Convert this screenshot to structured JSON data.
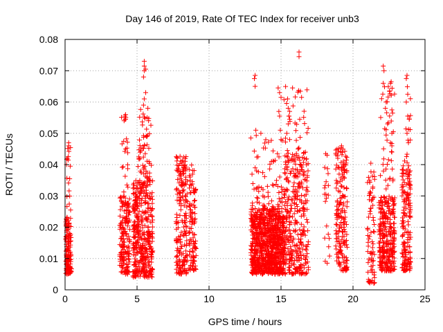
{
  "chart_data": {
    "type": "scatter",
    "title": "Day 146 of 2019, Rate Of TEC Index for receiver unb3",
    "xlabel": "GPS time / hours",
    "ylabel": "ROTI / TECUs",
    "xlim": [
      0,
      25
    ],
    "ylim": [
      0,
      0.08
    ],
    "xticks": [
      0,
      5,
      10,
      15,
      20,
      25
    ],
    "xtick_labels": [
      "0",
      "5",
      "10",
      "15",
      "20",
      "25"
    ],
    "yticks": [
      0,
      0.01,
      0.02,
      0.03,
      0.04,
      0.05,
      0.06,
      0.07,
      0.08
    ],
    "ytick_labels": [
      "0",
      "0.01",
      "0.02",
      "0.03",
      "0.04",
      "0.05",
      "0.06",
      "0.07",
      "0.08"
    ],
    "grid": true,
    "legend": "none",
    "marker": "plus",
    "color": "#ff0000",
    "clusters": [
      {
        "x": [
          0.05,
          0.45
        ],
        "y": [
          0.005,
          0.024
        ],
        "n": 140
      },
      {
        "x": [
          0.1,
          0.4
        ],
        "y": [
          0.024,
          0.047
        ],
        "n": 16
      },
      {
        "x": [
          3.8,
          4.5
        ],
        "y": [
          0.005,
          0.03
        ],
        "n": 170
      },
      {
        "x": [
          3.9,
          4.4
        ],
        "y": [
          0.03,
          0.056
        ],
        "n": 18
      },
      {
        "x": [
          4.7,
          6.1
        ],
        "y": [
          0.004,
          0.035
        ],
        "n": 420
      },
      {
        "x": [
          5.0,
          6.0
        ],
        "y": [
          0.035,
          0.058
        ],
        "n": 55
      },
      {
        "x": [
          7.7,
          8.5
        ],
        "y": [
          0.005,
          0.043
        ],
        "n": 200
      },
      {
        "x": [
          8.6,
          9.1
        ],
        "y": [
          0.006,
          0.04
        ],
        "n": 110
      },
      {
        "x": [
          12.9,
          15.2
        ],
        "y": [
          0.005,
          0.026
        ],
        "n": 900
      },
      {
        "x": [
          12.9,
          15.2
        ],
        "y": [
          0.026,
          0.05
        ],
        "n": 70
      },
      {
        "x": [
          15.2,
          16.9
        ],
        "y": [
          0.005,
          0.044
        ],
        "n": 350
      },
      {
        "x": [
          15.2,
          16.9
        ],
        "y": [
          0.044,
          0.065
        ],
        "n": 30
      },
      {
        "x": [
          18.0,
          18.4
        ],
        "y": [
          0.008,
          0.043
        ],
        "n": 20
      },
      {
        "x": [
          18.8,
          19.6
        ],
        "y": [
          0.006,
          0.046
        ],
        "n": 190
      },
      {
        "x": [
          21.0,
          21.5
        ],
        "y": [
          0.002,
          0.041
        ],
        "n": 80
      },
      {
        "x": [
          21.8,
          22.9
        ],
        "y": [
          0.006,
          0.03
        ],
        "n": 300
      },
      {
        "x": [
          21.9,
          22.9
        ],
        "y": [
          0.03,
          0.066
        ],
        "n": 40
      },
      {
        "x": [
          23.4,
          24.0
        ],
        "y": [
          0.006,
          0.04
        ],
        "n": 170
      },
      {
        "x": [
          23.5,
          24.0
        ],
        "y": [
          0.04,
          0.068
        ],
        "n": 14
      }
    ],
    "points": [
      [
        5.5,
        0.073
      ],
      [
        5.5,
        0.0715
      ],
      [
        5.5,
        0.07
      ],
      [
        5.6,
        0.0705
      ],
      [
        5.45,
        0.068
      ],
      [
        5.6,
        0.063
      ],
      [
        5.5,
        0.061
      ],
      [
        5.45,
        0.059
      ],
      [
        5.75,
        0.058
      ],
      [
        5.7,
        0.055
      ],
      [
        5.8,
        0.054
      ],
      [
        4.2,
        0.056
      ],
      [
        4.15,
        0.0555
      ],
      [
        4.2,
        0.0545
      ],
      [
        4.1,
        0.054
      ],
      [
        4.2,
        0.045
      ],
      [
        0.15,
        0.042
      ],
      [
        0.25,
        0.047
      ],
      [
        0.25,
        0.046
      ],
      [
        0.1,
        0.04
      ],
      [
        13.2,
        0.0685
      ],
      [
        13.15,
        0.0675
      ],
      [
        13.2,
        0.065
      ],
      [
        13.25,
        0.051
      ],
      [
        13.6,
        0.05
      ],
      [
        14.8,
        0.0645
      ],
      [
        14.9,
        0.063
      ],
      [
        15.0,
        0.0615
      ],
      [
        14.85,
        0.057
      ],
      [
        14.9,
        0.0555
      ],
      [
        14.95,
        0.051
      ],
      [
        15.0,
        0.048
      ],
      [
        16.25,
        0.076
      ],
      [
        16.25,
        0.0745
      ],
      [
        15.8,
        0.0645
      ],
      [
        15.5,
        0.058
      ],
      [
        15.6,
        0.057
      ],
      [
        15.55,
        0.0555
      ],
      [
        15.5,
        0.053
      ],
      [
        16.3,
        0.0545
      ],
      [
        15.4,
        0.05
      ],
      [
        15.6,
        0.048
      ],
      [
        22.1,
        0.0715
      ],
      [
        22.15,
        0.07
      ],
      [
        22.1,
        0.066
      ],
      [
        22.6,
        0.066
      ],
      [
        22.65,
        0.0665
      ],
      [
        22.3,
        0.06
      ],
      [
        22.25,
        0.058
      ],
      [
        22.7,
        0.0575
      ],
      [
        22.75,
        0.0565
      ],
      [
        22.4,
        0.053
      ],
      [
        22.2,
        0.0515
      ],
      [
        22.7,
        0.05
      ],
      [
        22.8,
        0.0505
      ],
      [
        22.6,
        0.047
      ],
      [
        22.7,
        0.046
      ],
      [
        23.75,
        0.0685
      ],
      [
        23.7,
        0.0675
      ],
      [
        23.8,
        0.0625
      ],
      [
        23.7,
        0.06
      ],
      [
        23.8,
        0.0555
      ],
      [
        23.75,
        0.05
      ],
      [
        23.85,
        0.047
      ],
      [
        18.1,
        0.0435
      ],
      [
        18.2,
        0.043
      ],
      [
        19.2,
        0.046
      ],
      [
        19.3,
        0.045
      ]
    ]
  }
}
